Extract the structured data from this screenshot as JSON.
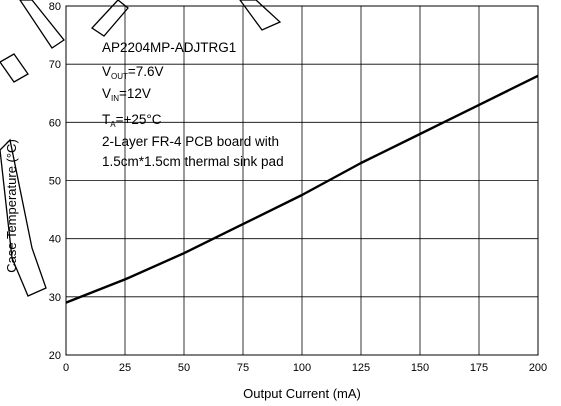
{
  "chart_data": {
    "type": "line",
    "title": "",
    "xlabel": "Output Current (mA)",
    "ylabel": "Case Temperature (°C)",
    "xlim": [
      0,
      200
    ],
    "ylim": [
      20,
      80
    ],
    "xticks": [
      0,
      25,
      50,
      75,
      100,
      125,
      150,
      175,
      200
    ],
    "yticks": [
      20,
      30,
      40,
      50,
      60,
      70,
      80
    ],
    "grid": true,
    "legend": "none",
    "series": [
      {
        "color": "#000000",
        "x": [
          0,
          25,
          50,
          75,
          100,
          125,
          150,
          175,
          200
        ],
        "y": [
          29,
          33,
          37.5,
          42.5,
          47.5,
          53,
          58,
          63,
          68
        ]
      }
    ]
  },
  "annotation": {
    "line1": "AP2204MP-ADJTRG1",
    "vout_main": "V",
    "vout_sub": "OUT",
    "vout_value": "=7.6V",
    "vin_main": "V",
    "vin_sub": "IN",
    "vin_value": "=12V",
    "ta_main": "T",
    "ta_sub": "A",
    "ta_value": "=+25°C",
    "line5": "2-Layer FR-4 PCB board with",
    "line6": "1.5cm*1.5cm thermal sink pad"
  },
  "watermark": {
    "color": "#000000"
  }
}
